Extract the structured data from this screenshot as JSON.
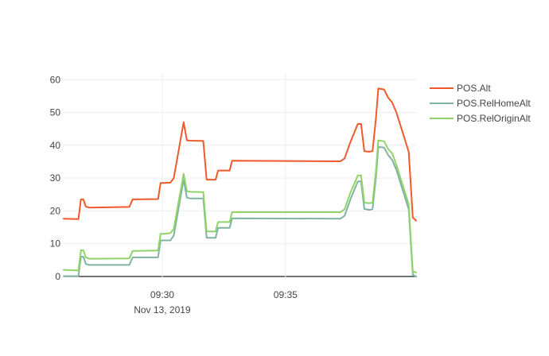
{
  "chart_data": {
    "type": "line",
    "x_axis": {
      "type": "time",
      "range": [
        "2019-11-13T09:26:00",
        "2019-11-13T09:40:20"
      ],
      "ticks": [
        {
          "x": "2019-11-13T09:30:00",
          "label": "09:30",
          "sublabel": "Nov 13, 2019"
        },
        {
          "x": "2019-11-13T09:35:00",
          "label": "09:35",
          "sublabel": ""
        }
      ]
    },
    "y_axis": {
      "range": [
        -1,
        62
      ],
      "ticks": [
        0,
        10,
        20,
        30,
        40,
        50,
        60
      ],
      "grid": true
    },
    "legend": {
      "placement": "right"
    },
    "series": [
      {
        "name": "POS.Alt",
        "color": "#f0592b",
        "x": [
          "2019-11-13T09:26:00",
          "2019-11-13T09:26:36",
          "2019-11-13T09:26:42",
          "2019-11-13T09:26:48",
          "2019-11-13T09:26:54",
          "2019-11-13T09:27:02",
          "2019-11-13T09:28:40",
          "2019-11-13T09:28:48",
          "2019-11-13T09:28:54",
          "2019-11-13T09:29:50",
          "2019-11-13T09:29:56",
          "2019-11-13T09:30:04",
          "2019-11-13T09:30:20",
          "2019-11-13T09:30:28",
          "2019-11-13T09:30:52",
          "2019-11-13T09:31:00",
          "2019-11-13T09:31:08",
          "2019-11-13T09:31:40",
          "2019-11-13T09:31:48",
          "2019-11-13T09:32:10",
          "2019-11-13T09:32:16",
          "2019-11-13T09:32:44",
          "2019-11-13T09:32:50",
          "2019-11-13T09:37:14",
          "2019-11-13T09:37:24",
          "2019-11-13T09:37:38",
          "2019-11-13T09:37:56",
          "2019-11-13T09:38:04",
          "2019-11-13T09:38:12",
          "2019-11-13T09:38:24",
          "2019-11-13T09:38:32",
          "2019-11-13T09:38:40",
          "2019-11-13T09:38:46",
          "2019-11-13T09:39:00",
          "2019-11-13T09:39:10",
          "2019-11-13T09:39:20",
          "2019-11-13T09:39:30",
          "2019-11-13T09:40:00",
          "2019-11-13T09:40:10",
          "2019-11-13T09:40:18"
        ],
        "y": [
          17.6,
          17.5,
          23.5,
          23.5,
          21.3,
          21.0,
          21.2,
          23.5,
          23.5,
          23.6,
          28.5,
          28.5,
          28.6,
          30,
          47,
          41.5,
          41.4,
          41.3,
          29.5,
          29.5,
          32.3,
          32.3,
          35.3,
          35.1,
          36,
          41,
          46.5,
          46.5,
          38.2,
          38.0,
          38.2,
          48,
          57.3,
          57,
          54.5,
          53,
          50,
          38,
          18,
          17
        ]
      },
      {
        "name": "POS.RelHomeAlt",
        "color": "#7fb3a3",
        "x": [
          "2019-11-13T09:26:00",
          "2019-11-13T09:26:36",
          "2019-11-13T09:26:42",
          "2019-11-13T09:26:48",
          "2019-11-13T09:26:54",
          "2019-11-13T09:27:02",
          "2019-11-13T09:28:40",
          "2019-11-13T09:28:48",
          "2019-11-13T09:28:54",
          "2019-11-13T09:29:50",
          "2019-11-13T09:29:56",
          "2019-11-13T09:30:04",
          "2019-11-13T09:30:20",
          "2019-11-13T09:30:28",
          "2019-11-13T09:30:52",
          "2019-11-13T09:31:00",
          "2019-11-13T09:31:08",
          "2019-11-13T09:31:40",
          "2019-11-13T09:31:48",
          "2019-11-13T09:32:10",
          "2019-11-13T09:32:16",
          "2019-11-13T09:32:44",
          "2019-11-13T09:32:50",
          "2019-11-13T09:37:14",
          "2019-11-13T09:37:24",
          "2019-11-13T09:37:38",
          "2019-11-13T09:37:56",
          "2019-11-13T09:38:04",
          "2019-11-13T09:38:12",
          "2019-11-13T09:38:24",
          "2019-11-13T09:38:32",
          "2019-11-13T09:38:40",
          "2019-11-13T09:38:46",
          "2019-11-13T09:39:00",
          "2019-11-13T09:39:10",
          "2019-11-13T09:39:20",
          "2019-11-13T09:39:30",
          "2019-11-13T09:40:00",
          "2019-11-13T09:40:10",
          "2019-11-13T09:40:18"
        ],
        "y": [
          0.1,
          0.1,
          6.0,
          6.0,
          3.8,
          3.5,
          3.5,
          5.8,
          5.8,
          5.8,
          11,
          11,
          11,
          12.5,
          29.5,
          24.0,
          23.8,
          23.8,
          11.8,
          11.8,
          14.8,
          14.8,
          17.7,
          17.6,
          18.5,
          23.5,
          29.0,
          29.0,
          20.6,
          20.3,
          20.5,
          30,
          39.5,
          39.3,
          37,
          35.5,
          32.5,
          20.5,
          0.5,
          0
        ]
      },
      {
        "name": "POS.RelOriginAlt",
        "color": "#8fd468",
        "x": [
          "2019-11-13T09:26:00",
          "2019-11-13T09:26:36",
          "2019-11-13T09:26:42",
          "2019-11-13T09:26:48",
          "2019-11-13T09:26:54",
          "2019-11-13T09:27:02",
          "2019-11-13T09:28:40",
          "2019-11-13T09:28:48",
          "2019-11-13T09:28:54",
          "2019-11-13T09:29:50",
          "2019-11-13T09:29:56",
          "2019-11-13T09:30:04",
          "2019-11-13T09:30:20",
          "2019-11-13T09:30:28",
          "2019-11-13T09:30:52",
          "2019-11-13T09:31:00",
          "2019-11-13T09:31:08",
          "2019-11-13T09:31:40",
          "2019-11-13T09:31:48",
          "2019-11-13T09:32:10",
          "2019-11-13T09:32:16",
          "2019-11-13T09:32:44",
          "2019-11-13T09:32:50",
          "2019-11-13T09:37:14",
          "2019-11-13T09:37:24",
          "2019-11-13T09:37:38",
          "2019-11-13T09:37:56",
          "2019-11-13T09:38:04",
          "2019-11-13T09:38:12",
          "2019-11-13T09:38:24",
          "2019-11-13T09:38:32",
          "2019-11-13T09:38:40",
          "2019-11-13T09:38:46",
          "2019-11-13T09:39:00",
          "2019-11-13T09:39:10",
          "2019-11-13T09:39:20",
          "2019-11-13T09:39:30",
          "2019-11-13T09:40:00",
          "2019-11-13T09:40:10",
          "2019-11-13T09:40:18"
        ],
        "y": [
          2.0,
          1.8,
          8.0,
          8.0,
          5.8,
          5.4,
          5.5,
          7.8,
          7.8,
          7.9,
          13,
          13,
          13.2,
          14.5,
          31.3,
          26.0,
          25.8,
          25.7,
          13.7,
          13.7,
          16.6,
          16.6,
          19.6,
          19.6,
          20.5,
          25.5,
          30.8,
          30.8,
          22.5,
          22.3,
          22.5,
          32,
          41.5,
          41.2,
          38.8,
          37.5,
          34,
          22,
          1.5,
          1.2
        ]
      }
    ]
  }
}
